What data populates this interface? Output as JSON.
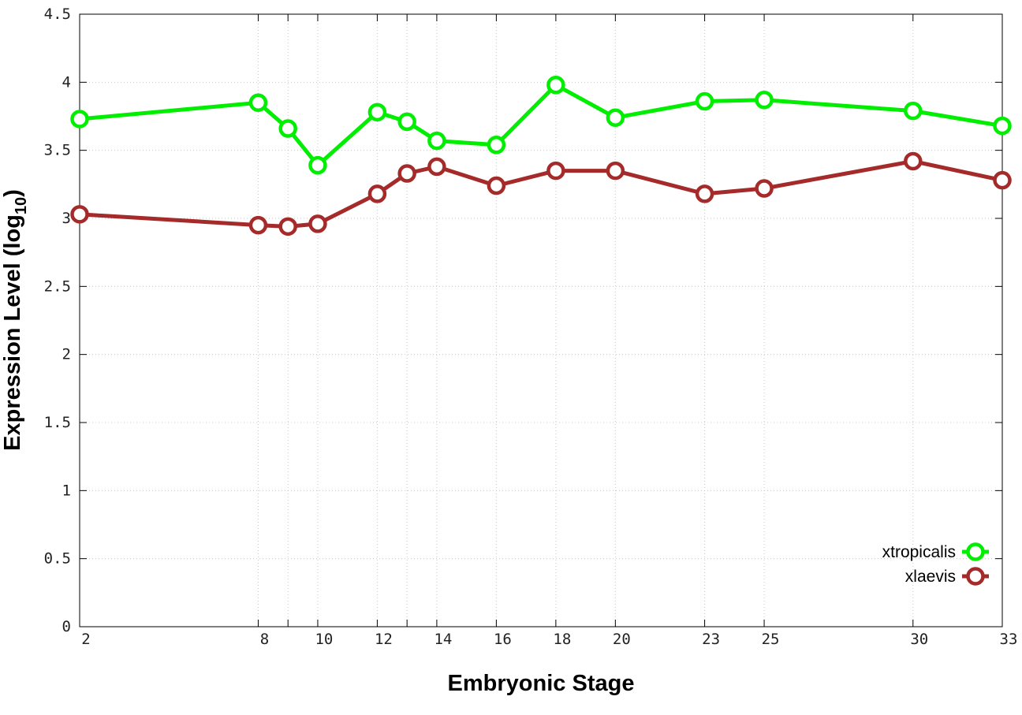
{
  "chart_data": {
    "type": "line",
    "x_categories": [
      "2",
      "8",
      "9",
      "10",
      "12",
      "13",
      "14",
      "16",
      "18",
      "20",
      "23",
      "25",
      "30",
      "33"
    ],
    "x_tick_labels": [
      "2",
      "8",
      "10",
      "12",
      "14",
      "16",
      "18",
      "20",
      "23",
      "25",
      "30",
      "33"
    ],
    "xlabel": "Embryonic Stage",
    "ylabel": "Expression Level (log",
    "ylabel_subscript": "10",
    "ylabel_suffix": ")",
    "ylim": [
      0,
      4.5
    ],
    "y_ticks": [
      "0",
      "0.5",
      "1",
      "1.5",
      "2",
      "2.5",
      "3",
      "3.5",
      "4",
      "4.5"
    ],
    "grid": true,
    "legend_position": "bottom-right",
    "series": [
      {
        "name": "xtropicalis",
        "color": "#00ee00",
        "x": [
          2,
          8,
          9,
          10,
          12,
          13,
          14,
          16,
          18,
          20,
          23,
          25,
          30,
          33
        ],
        "values": [
          3.73,
          3.85,
          3.66,
          3.39,
          3.78,
          3.71,
          3.57,
          3.54,
          3.98,
          3.74,
          3.86,
          3.87,
          3.79,
          3.68
        ]
      },
      {
        "name": "xlaevis",
        "color": "#a52a2a",
        "x": [
          2,
          8,
          9,
          10,
          12,
          13,
          14,
          16,
          18,
          20,
          23,
          25,
          30,
          33
        ],
        "values": [
          3.03,
          2.95,
          2.94,
          2.96,
          3.18,
          3.33,
          3.38,
          3.24,
          3.35,
          3.35,
          3.18,
          3.22,
          3.42,
          3.28
        ]
      }
    ]
  }
}
